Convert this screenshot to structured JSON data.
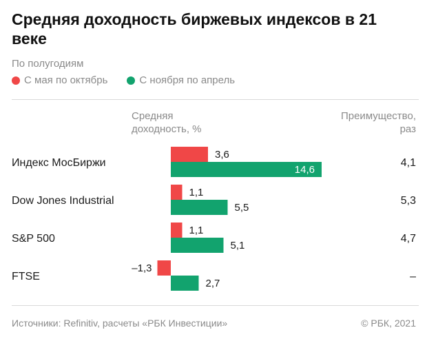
{
  "title": "Средняя доходность биржевых индексов в 21 веке",
  "subtitle": "По полугодиям",
  "column_headers": {
    "left": [
      "Средняя",
      "доходность, %"
    ],
    "right": [
      "Преимущество,",
      "раз"
    ]
  },
  "footer": {
    "source": "Источники: Refinitiv, расчеты «РБК Инвестиции»",
    "copyright": "© РБК, 2021"
  },
  "colors": {
    "may_oct": "#f04747",
    "nov_apr": "#12a36e"
  },
  "chart_data": {
    "type": "bar",
    "orientation": "horizontal",
    "title": "Средняя доходность биржевых индексов в 21 веке",
    "subtitle": "По полугодиям",
    "xlabel": "Средняя доходность, %",
    "categories": [
      "Индекс МосБиржи",
      "Dow Jones Industrial",
      "S&P 500",
      "FTSE"
    ],
    "series": [
      {
        "name": "С мая по октябрь",
        "color": "#f04747",
        "values": [
          3.6,
          1.1,
          1.1,
          -1.3
        ],
        "labels": [
          "3,6",
          "1,1",
          "1,1",
          "–1,3"
        ]
      },
      {
        "name": "С ноября по апрель",
        "color": "#12a36e",
        "values": [
          14.6,
          5.5,
          5.1,
          2.7
        ],
        "labels": [
          "14,6",
          "5,5",
          "5,1",
          "2,7"
        ]
      }
    ],
    "advantage": {
      "header": "Преимущество, раз",
      "values": [
        "4,1",
        "5,3",
        "4,7",
        "–"
      ]
    },
    "legend_position": "top-left",
    "grid": false
  }
}
